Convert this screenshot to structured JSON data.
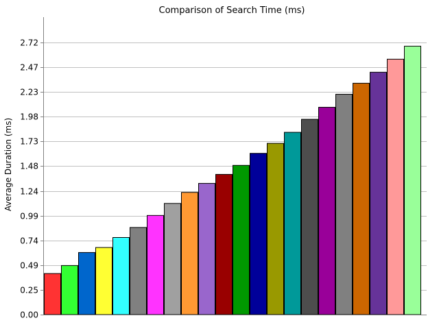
{
  "chart_data": {
    "type": "bar",
    "title": "Comparison of Search Time (ms)",
    "xlabel": "",
    "ylabel": "Average Duration (ms)",
    "ylim": [
      0,
      2.97
    ],
    "yticks": [
      "0.00",
      "0.25",
      "0.49",
      "0.74",
      "0.99",
      "1.24",
      "1.48",
      "1.73",
      "1.98",
      "2.23",
      "2.47",
      "2.72"
    ],
    "ytick_values": [
      0.0,
      0.247,
      0.494,
      0.741,
      0.988,
      1.235,
      1.482,
      1.729,
      1.976,
      2.223,
      2.47,
      2.717
    ],
    "grid": true,
    "legend": "none",
    "values": [
      0.41,
      0.49,
      0.62,
      0.67,
      0.77,
      0.87,
      0.99,
      1.11,
      1.22,
      1.31,
      1.4,
      1.49,
      1.61,
      1.71,
      1.82,
      1.95,
      2.07,
      2.2,
      2.31,
      2.42,
      2.55,
      2.68
    ],
    "colors": [
      "#ff3333",
      "#33ff33",
      "#0066cc",
      "#ffff33",
      "#33ffff",
      "#808080",
      "#ff33ff",
      "#a0a0a0",
      "#ff9933",
      "#9966cc",
      "#990000",
      "#009900",
      "#000099",
      "#999900",
      "#009999",
      "#4d4d4d",
      "#990099",
      "#808080",
      "#cc6600",
      "#663399",
      "#ff9999",
      "#99ff99"
    ]
  }
}
